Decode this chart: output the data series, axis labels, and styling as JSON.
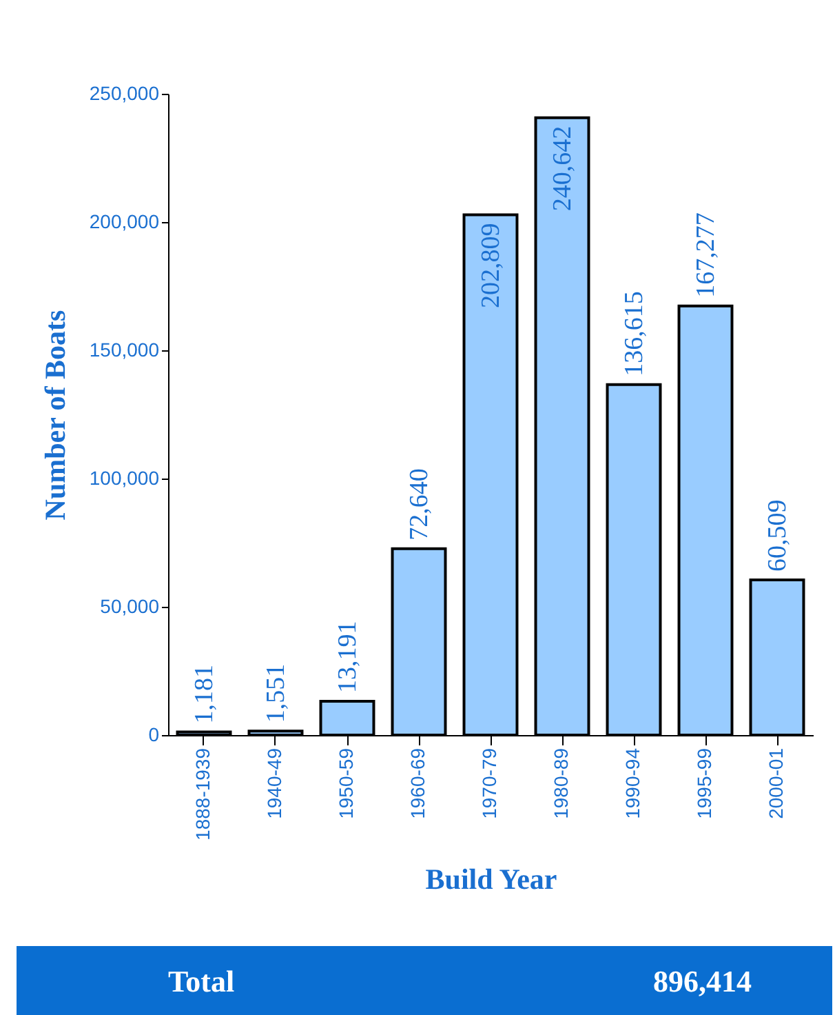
{
  "chart_data": {
    "type": "bar",
    "xlabel": "Build Year",
    "ylabel": "Number of Boats",
    "categories": [
      "1888-1939",
      "1940-49",
      "1950-59",
      "1960-69",
      "1970-79",
      "1980-89",
      "1990-94",
      "1995-99",
      "2000-01"
    ],
    "values": [
      1181,
      1551,
      13191,
      72640,
      202809,
      240642,
      136615,
      167277,
      60509
    ],
    "color": "#99ccff",
    "value_labels": [
      "1,181",
      "1,551",
      "13,191",
      "72,640",
      "202,809",
      "240,642",
      "136,615",
      "167,277",
      "60,509"
    ],
    "ylim": [
      0,
      250000
    ],
    "yticks": [
      0,
      {
        "value": 50000,
        "label": "50,000"
      },
      {
        "value": 100000,
        "label": "100,000"
      },
      {
        "value": 150000,
        "label": "150,000"
      },
      {
        "value": 200000,
        "label": "200,000"
      },
      {
        "value": 250000,
        "label": "250,000"
      }
    ],
    "grid": false,
    "annotations": [
      "Total",
      "896,414"
    ]
  }
}
